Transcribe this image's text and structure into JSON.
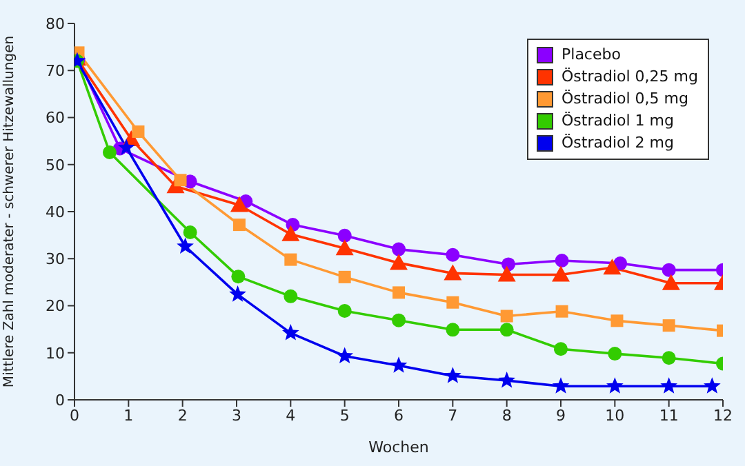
{
  "chart_data": {
    "type": "line",
    "xlabel": "Wochen",
    "ylabel": "Mittlere Zahl moderater - schwerer Hitzewallungen",
    "xlim": [
      0,
      12
    ],
    "xticks": [
      0,
      1,
      2,
      3,
      4,
      5,
      6,
      7,
      8,
      9,
      10,
      11,
      12
    ],
    "ylim": [
      0,
      80
    ],
    "yticks": [
      0,
      10,
      20,
      30,
      40,
      50,
      60,
      70,
      80
    ],
    "grid": false,
    "legend": "top right",
    "series": [
      {
        "name": "Placebo",
        "color": "#8b00ff",
        "marker": "circle",
        "x": [
          0.07,
          0.84,
          2.14,
          3.17,
          4.04,
          5.0,
          6.0,
          7.0,
          8.03,
          9.02,
          10.1,
          11.0,
          12.0
        ],
        "values": [
          72.3,
          53.4,
          46.4,
          42.2,
          37.2,
          34.9,
          32.0,
          30.8,
          28.8,
          29.6,
          29.0,
          27.6,
          27.6
        ]
      },
      {
        "name": "Östradiol 0,25 mg",
        "color": "#ff3300",
        "marker": "triangle",
        "x": [
          0.05,
          1.05,
          1.87,
          3.05,
          4.0,
          5.0,
          6.0,
          7.0,
          8.0,
          9.0,
          9.95,
          11.04,
          12.0
        ],
        "values": [
          72.5,
          55.4,
          45.4,
          41.4,
          35.2,
          32.2,
          29.1,
          26.9,
          26.6,
          26.6,
          28.1,
          24.8,
          24.8
        ]
      },
      {
        "name": "Östradiol 0,5 mg",
        "color": "#ff9933",
        "marker": "square",
        "x": [
          0.07,
          1.18,
          1.96,
          3.05,
          4.0,
          5.0,
          6.0,
          7.0,
          8.0,
          9.02,
          10.04,
          11.0,
          12.0
        ],
        "values": [
          73.8,
          57.0,
          46.7,
          37.2,
          29.8,
          26.1,
          22.8,
          20.7,
          17.8,
          18.8,
          16.8,
          15.8,
          14.7
        ]
      },
      {
        "name": "Östradiol 1 mg",
        "color": "#33cc00",
        "marker": "circle",
        "x": [
          0.05,
          0.65,
          2.14,
          3.03,
          4.0,
          5.0,
          6.0,
          7.0,
          8.0,
          9.0,
          10.0,
          11.0,
          12.0
        ],
        "values": [
          72.0,
          52.6,
          35.6,
          26.2,
          22.0,
          18.9,
          16.9,
          14.9,
          14.9,
          10.8,
          9.8,
          8.9,
          7.7
        ]
      },
      {
        "name": "Östradiol 2 mg",
        "color": "#0000ee",
        "marker": "star",
        "x": [
          0.05,
          0.96,
          2.05,
          3.02,
          4.0,
          5.0,
          6.0,
          7.0,
          8.0,
          9.0,
          10.0,
          11.0,
          11.8
        ],
        "values": [
          72.0,
          53.6,
          32.6,
          22.4,
          14.2,
          9.3,
          7.3,
          5.1,
          4.1,
          2.9,
          2.9,
          2.9,
          2.9
        ]
      }
    ]
  }
}
